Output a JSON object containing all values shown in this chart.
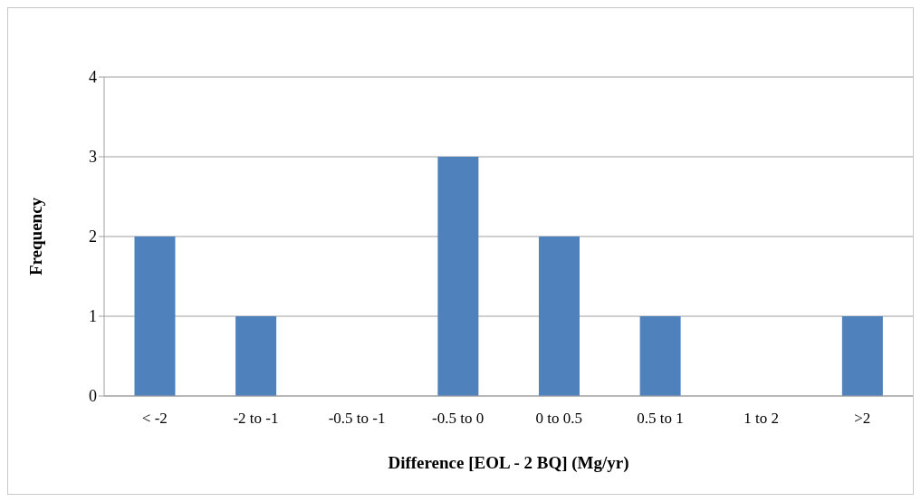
{
  "chart_data": {
    "type": "bar",
    "xlabel": "Difference [EOL - 2 BQ] (Mg/yr)",
    "ylabel": "Frequency",
    "categories": [
      "< -2",
      "-2 to -1",
      "-0.5 to -1",
      "-0.5 to 0",
      "0 to 0.5",
      "0.5 to 1",
      "1 to 2",
      ">2"
    ],
    "values": [
      2,
      1,
      0,
      3,
      2,
      1,
      0,
      1
    ],
    "color": "#4f81bd",
    "ylim": [
      0,
      4
    ],
    "yticks": [
      0,
      1,
      2,
      3,
      4
    ],
    "grid": "y"
  }
}
